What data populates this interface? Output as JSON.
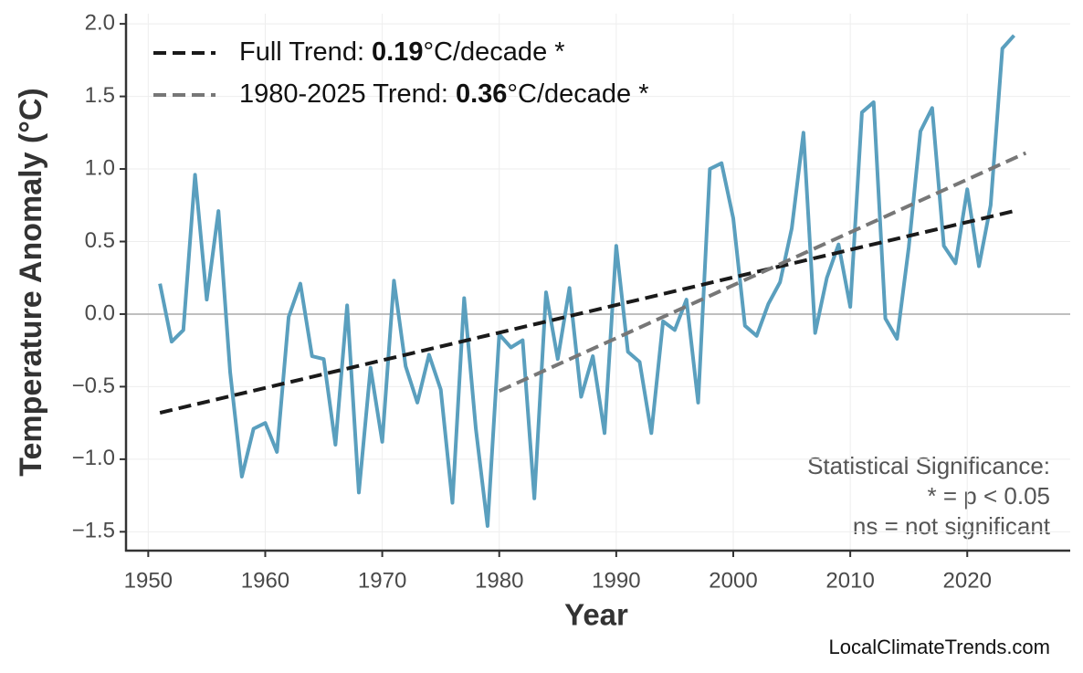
{
  "chart_data": {
    "type": "line",
    "xlabel": "Year",
    "ylabel": "Temperature Anomaly (°C)",
    "xlim": [
      1948.1,
      2028.8
    ],
    "ylim": [
      -1.63,
      2.07
    ],
    "xticks": [
      1950,
      1960,
      1970,
      1980,
      1990,
      2000,
      2010,
      2020
    ],
    "yticks": [
      {
        "value": -1.5,
        "label": "−1.5"
      },
      {
        "value": -1.0,
        "label": "−1.0"
      },
      {
        "value": -0.5,
        "label": "−0.5"
      },
      {
        "value": 0,
        "label": "0.0"
      },
      0.5,
      {
        "value": 1.0,
        "label": "1.0"
      },
      1.5,
      {
        "value": 2.0,
        "label": "2.0"
      }
    ],
    "grid": true,
    "series": [
      {
        "color": "#5a9fbe",
        "x": [
          1951,
          1952,
          1953,
          1954,
          1955,
          1956,
          1957,
          1958,
          1959,
          1960,
          1961,
          1962,
          1963,
          1964,
          1965,
          1966,
          1967,
          1968,
          1969,
          1970,
          1971,
          1972,
          1973,
          1974,
          1975,
          1976,
          1977,
          1978,
          1979,
          1980,
          1981,
          1982,
          1983,
          1984,
          1985,
          1986,
          1987,
          1988,
          1989,
          1990,
          1991,
          1992,
          1993,
          1994,
          1995,
          1996,
          1997,
          1998,
          1999,
          2000,
          2001,
          2002,
          2003,
          2004,
          2005,
          2006,
          2007,
          2008,
          2009,
          2010,
          2011,
          2012,
          2013,
          2014,
          2015,
          2016,
          2017,
          2018,
          2019,
          2020,
          2021,
          2022,
          2023,
          2024
        ],
        "values": [
          0.21,
          -0.19,
          -0.11,
          0.96,
          0.1,
          0.71,
          -0.4,
          -1.12,
          -0.79,
          -0.75,
          -0.95,
          -0.02,
          0.21,
          -0.29,
          -0.31,
          -0.9,
          0.06,
          -1.23,
          -0.37,
          -0.88,
          0.23,
          -0.36,
          -0.61,
          -0.28,
          -0.52,
          -1.3,
          0.11,
          -0.79,
          -1.46,
          -0.14,
          -0.23,
          -0.18,
          -1.27,
          0.15,
          -0.31,
          0.18,
          -0.57,
          -0.29,
          -0.82,
          0.47,
          -0.26,
          -0.33,
          -0.82,
          -0.05,
          -0.11,
          0.1,
          -0.61,
          1.0,
          1.04,
          0.66,
          -0.08,
          -0.15,
          0.07,
          0.22,
          0.59,
          1.25,
          -0.13,
          0.25,
          0.48,
          0.05,
          1.39,
          1.46,
          -0.03,
          -0.17,
          0.46,
          1.26,
          1.42,
          0.47,
          0.35,
          0.86,
          0.33,
          0.75,
          1.83,
          1.92
        ]
      }
    ],
    "trends": [
      {
        "name": "Full Trend:",
        "slope": 0.19,
        "unit": "°C/decade *",
        "color": "#1a1a1a",
        "x": [
          1951,
          2024
        ],
        "values": [
          -0.68,
          0.71
        ]
      },
      {
        "name": "1980-2025 Trend:",
        "slope": 0.36,
        "unit": "°C/decade *",
        "color": "#777777",
        "x": [
          1980,
          2025
        ],
        "values": [
          -0.53,
          1.11
        ]
      }
    ],
    "annotations": [
      "Statistical Significance:",
      "* = p < 0.05",
      "ns = not significant"
    ],
    "watermark": "LocalClimateTrends.com"
  }
}
